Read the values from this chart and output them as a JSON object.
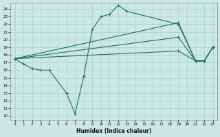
{
  "xlabel": "Humidex (Indice chaleur)",
  "xlim": [
    -0.5,
    23.5
  ],
  "ylim": [
    9.5,
    24.8
  ],
  "xticks": [
    0,
    1,
    2,
    3,
    4,
    5,
    6,
    7,
    8,
    9,
    10,
    11,
    12,
    13,
    14,
    15,
    16,
    17,
    18,
    19,
    20,
    21,
    22,
    23
  ],
  "yticks": [
    10,
    11,
    12,
    13,
    14,
    15,
    16,
    17,
    18,
    19,
    20,
    21,
    22,
    23,
    24
  ],
  "bg_color": "#cce8e2",
  "line_color": "#1a6e64",
  "grid_color": "#b0d8d0",
  "series": [
    {
      "x": [
        0,
        1,
        2,
        3,
        4,
        6,
        7,
        8,
        9,
        10,
        11,
        12,
        13,
        19,
        21,
        22,
        23
      ],
      "y": [
        17.5,
        16.8,
        16.2,
        16.0,
        16.0,
        13.0,
        10.3,
        15.2,
        21.3,
        23.0,
        23.3,
        24.5,
        23.7,
        22.0,
        17.2,
        17.2,
        19.0
      ]
    },
    {
      "x": [
        0,
        19,
        21,
        22,
        23
      ],
      "y": [
        17.5,
        22.2,
        17.2,
        17.2,
        19.0
      ]
    },
    {
      "x": [
        0,
        19,
        21,
        22,
        23
      ],
      "y": [
        17.5,
        20.3,
        17.2,
        17.2,
        19.0
      ]
    },
    {
      "x": [
        0,
        19,
        21,
        22,
        23
      ],
      "y": [
        17.5,
        18.5,
        17.2,
        17.2,
        19.0
      ]
    }
  ]
}
